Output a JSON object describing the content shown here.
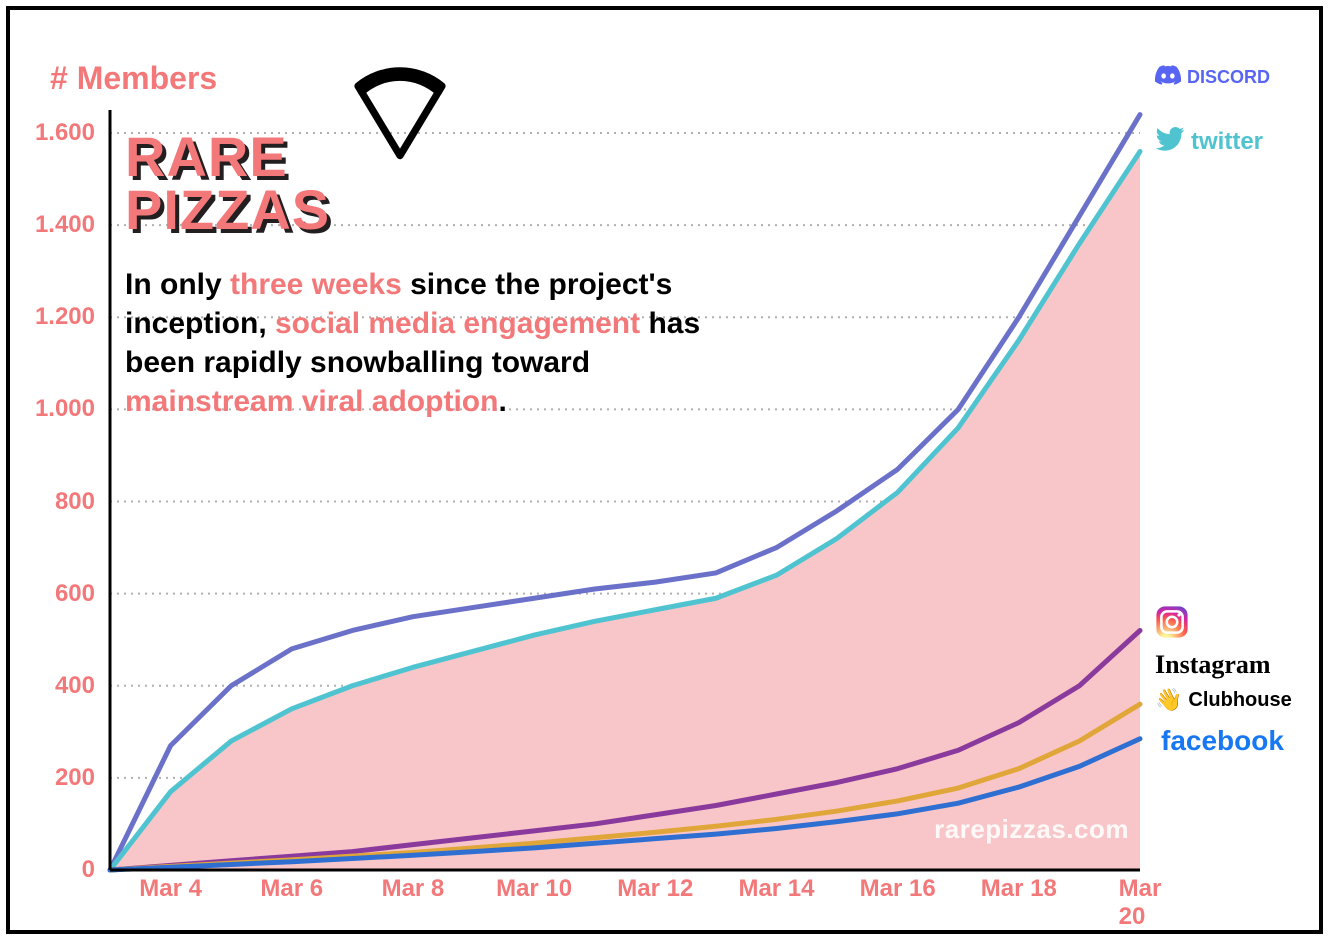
{
  "chart": {
    "type": "line",
    "y_axis_title": "# Members",
    "logo_line1": "RARE",
    "logo_line2": "PIZZAS",
    "headline_parts": [
      {
        "t": "In only ",
        "hl": false
      },
      {
        "t": "three weeks",
        "hl": true
      },
      {
        "t": " since the project's inception, ",
        "hl": false
      },
      {
        "t": "social media engagement",
        "hl": true
      },
      {
        "t": " has been rapidly snowballing toward ",
        "hl": false
      },
      {
        "t": "mainstream viral adoption",
        "hl": true
      },
      {
        "t": ".",
        "hl": false
      }
    ],
    "watermark": "rarepizzas.com",
    "accent_color": "#f2787a",
    "text_color": "#000000",
    "background_color": "#ffffff",
    "area_fill": "#f8c6c8",
    "grid_color": "#b0b0b0",
    "axis_color": "#000000",
    "line_width": 5,
    "xlim": [
      3,
      20
    ],
    "ylim": [
      0,
      1650
    ],
    "y_ticks": [
      0,
      200,
      400,
      600,
      800,
      1000,
      1200,
      1400,
      1600
    ],
    "y_tick_labels": [
      "0",
      "200",
      "400",
      "600",
      "800",
      "1.000",
      "1.200",
      "1.400",
      "1.600"
    ],
    "x_tick_values": [
      4,
      6,
      8,
      10,
      12,
      14,
      16,
      18,
      20
    ],
    "x_tick_labels": [
      "Mar 4",
      "Mar 6",
      "Mar 8",
      "Mar 10",
      "Mar 12",
      "Mar 14",
      "Mar 16",
      "Mar 18",
      "Mar 20"
    ],
    "x_values": [
      3,
      4,
      5,
      6,
      7,
      8,
      9,
      10,
      11,
      12,
      13,
      14,
      15,
      16,
      17,
      18,
      19,
      20
    ],
    "series": [
      {
        "name": "Discord",
        "color": "#6b71c9",
        "y": [
          0,
          270,
          400,
          480,
          520,
          550,
          570,
          590,
          610,
          625,
          645,
          700,
          780,
          870,
          1000,
          1200,
          1420,
          1640
        ],
        "legend_color": "#5865F2",
        "legend_icon": "discord",
        "legend_y": 0,
        "legend_font_size": 18
      },
      {
        "name": "twitter",
        "color": "#4fc4d0",
        "y": [
          0,
          170,
          280,
          350,
          400,
          440,
          475,
          510,
          540,
          565,
          590,
          640,
          720,
          820,
          960,
          1150,
          1360,
          1560
        ],
        "legend_color": "#4fc4d0",
        "legend_icon": "twitter",
        "legend_y": 62,
        "legend_font_size": 24,
        "fill_area": true
      },
      {
        "name": "Instagram",
        "color": "#8a3a9c",
        "y": [
          0,
          10,
          20,
          30,
          40,
          55,
          70,
          85,
          100,
          120,
          140,
          165,
          190,
          220,
          260,
          320,
          400,
          520
        ],
        "legend_color": "#000000",
        "legend_icon": "instagram",
        "legend_y": 540,
        "legend_font_size": 22,
        "legend_font_family": "Brush Script MT, cursive"
      },
      {
        "name": "Clubhouse",
        "color": "#e0a63a",
        "y": [
          0,
          8,
          15,
          22,
          30,
          38,
          48,
          58,
          70,
          82,
          95,
          110,
          128,
          150,
          178,
          220,
          280,
          360
        ],
        "legend_color": "#000000",
        "legend_icon": "clubhouse",
        "legend_y": 622,
        "legend_font_size": 20
      },
      {
        "name": "facebook",
        "color": "#2f6fd1",
        "y": [
          0,
          6,
          12,
          18,
          25,
          32,
          40,
          48,
          58,
          68,
          78,
          90,
          105,
          122,
          145,
          180,
          225,
          285
        ],
        "legend_color": "#1877F2",
        "legend_icon": "facebook",
        "legend_y": 660,
        "legend_font_size": 28,
        "legend_font_weight": 900
      }
    ]
  }
}
